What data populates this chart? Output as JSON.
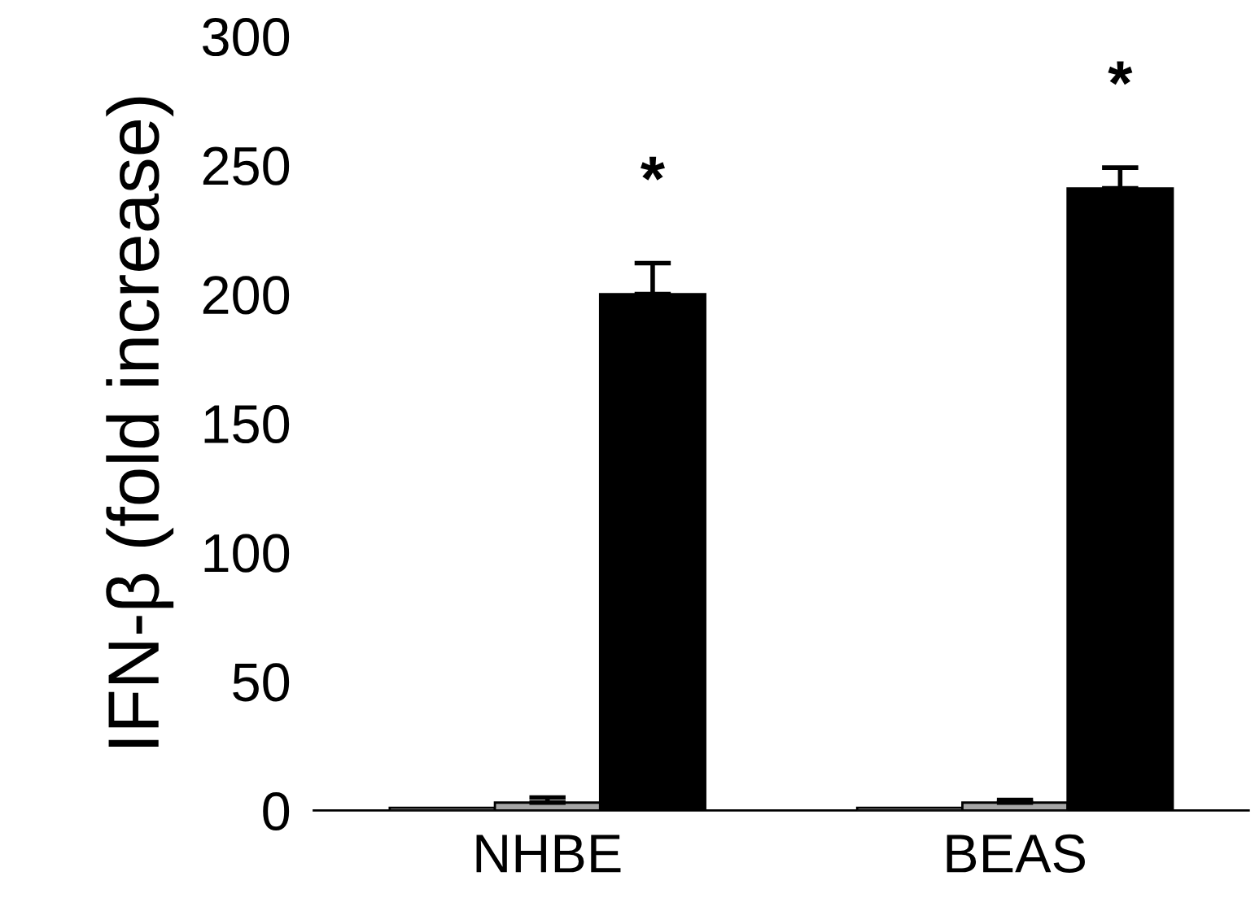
{
  "chart_data": {
    "type": "bar",
    "ylabel": "IFN-β (fold increase)",
    "categories": [
      "NHBE",
      "BEAS"
    ],
    "series": [
      {
        "color": "#ffffff",
        "values": [
          1,
          1
        ]
      },
      {
        "color": "#a6a6a6",
        "values": [
          3,
          3
        ],
        "errors": [
          2,
          1
        ]
      },
      {
        "color": "#000000",
        "values": [
          200,
          241
        ],
        "errors": [
          12,
          8
        ]
      }
    ],
    "ylim": [
      0,
      300
    ],
    "yticks": [
      0,
      50,
      100,
      150,
      200,
      250,
      300
    ],
    "annotations": [
      "*",
      "*"
    ],
    "grid": false,
    "legend": false
  }
}
